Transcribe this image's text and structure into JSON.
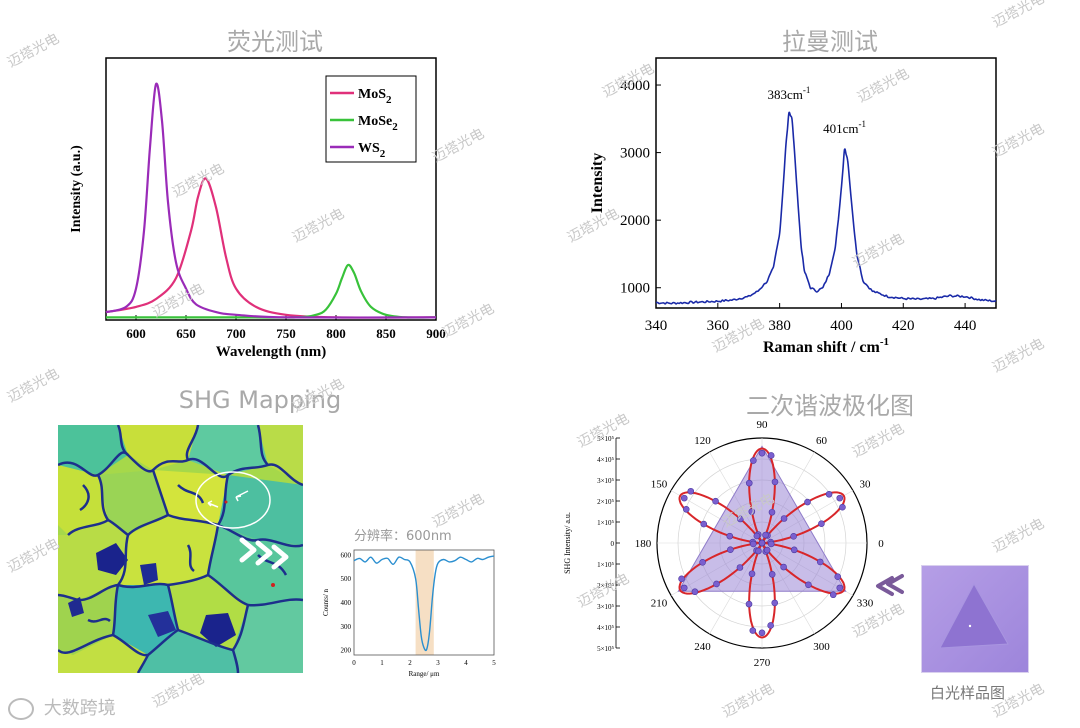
{
  "titles": {
    "pl": "荧光测试",
    "raman": "拉曼测试",
    "shg_map": "SHG Mapping",
    "shg_polar": "二次谐波极化图"
  },
  "watermark": "迈塔光电",
  "logo_text": "大数跨境",
  "white_light_caption": "白光样品图",
  "resolution_label": "分辨率：600nm",
  "chart_data": [
    {
      "type": "line",
      "id": "pl",
      "xlabel": "Wavelength (nm)",
      "ylabel": "Intensity (a.u.)",
      "xlim": [
        570,
        900
      ],
      "xticks": [
        600,
        650,
        700,
        750,
        800,
        850,
        900
      ],
      "ylim": [
        0,
        1.0
      ],
      "legend": "top-right",
      "legend_labels": [
        [
          "MoS",
          "2"
        ],
        [
          "MoSe",
          "2"
        ],
        [
          "WS",
          "2"
        ]
      ],
      "series": [
        {
          "name": "MoS2",
          "color": "#e0307a",
          "x": [
            570,
            600,
            620,
            640,
            655,
            662,
            670,
            680,
            690,
            700,
            720,
            750,
            800,
            900
          ],
          "y": [
            0.03,
            0.05,
            0.08,
            0.16,
            0.34,
            0.47,
            0.54,
            0.43,
            0.24,
            0.12,
            0.05,
            0.02,
            0.01,
            0.01
          ]
        },
        {
          "name": "MoSe2",
          "color": "#38c23a",
          "x": [
            570,
            700,
            760,
            780,
            790,
            800,
            806,
            812,
            818,
            825,
            835,
            850,
            870,
            900
          ],
          "y": [
            0.01,
            0.01,
            0.01,
            0.02,
            0.04,
            0.1,
            0.16,
            0.21,
            0.18,
            0.11,
            0.05,
            0.02,
            0.01,
            0.01
          ]
        },
        {
          "name": "WS2",
          "color": "#9a2bb8",
          "x": [
            570,
            590,
            600,
            608,
            614,
            620,
            626,
            632,
            640,
            650,
            660,
            680,
            700,
            750,
            900
          ],
          "y": [
            0.03,
            0.05,
            0.12,
            0.34,
            0.66,
            0.9,
            0.76,
            0.45,
            0.22,
            0.12,
            0.06,
            0.03,
            0.02,
            0.01,
            0.01
          ]
        }
      ]
    },
    {
      "type": "line",
      "id": "raman",
      "xlabel": "Raman shift / cm",
      "xlabel_sup": "-1",
      "ylabel": "Intensity",
      "xlim": [
        340,
        450
      ],
      "ylim": [
        700,
        4400
      ],
      "xticks": [
        340,
        360,
        380,
        400,
        420,
        440
      ],
      "yticks": [
        1000,
        2000,
        3000,
        4000
      ],
      "annotations": [
        {
          "text": "383cm",
          "sup": "-1",
          "x": 383,
          "y": 3790
        },
        {
          "text": "401cm",
          "sup": "-1",
          "x": 401,
          "y": 3290
        }
      ],
      "series": [
        {
          "name": "Raman",
          "color": "#1a2aa8",
          "x": [
            340,
            345,
            350,
            355,
            360,
            365,
            370,
            373,
            376,
            378,
            380,
            381,
            382,
            383,
            384,
            385,
            386,
            387,
            388,
            390,
            392,
            394,
            396,
            398,
            399,
            400,
            401,
            402,
            403,
            404,
            405,
            407,
            410,
            415,
            420,
            425,
            430,
            435,
            440,
            445,
            450
          ],
          "y": [
            780,
            770,
            780,
            790,
            800,
            820,
            870,
            950,
            1100,
            1300,
            1800,
            2400,
            3100,
            3580,
            3500,
            2900,
            2200,
            1600,
            1250,
            1000,
            950,
            1000,
            1200,
            1600,
            2000,
            2500,
            3050,
            2900,
            2400,
            1900,
            1500,
            1100,
            950,
            870,
            840,
            830,
            840,
            880,
            870,
            820,
            800
          ]
        }
      ]
    },
    {
      "type": "line",
      "id": "shg_profile",
      "xlabel": "Range/ μm",
      "ylabel": "Counts/ n",
      "xlim": [
        0,
        5
      ],
      "ylim": [
        180,
        620
      ],
      "xticks": [
        0,
        1,
        2,
        3,
        4,
        5
      ],
      "yticks": [
        200,
        300,
        400,
        500,
        600
      ],
      "highlight_range": [
        2.2,
        2.85
      ],
      "series": [
        {
          "name": "profile",
          "color": "#2b8fd0",
          "x": [
            0,
            0.2,
            0.4,
            0.6,
            0.8,
            1.0,
            1.2,
            1.4,
            1.6,
            1.8,
            2.0,
            2.2,
            2.3,
            2.4,
            2.5,
            2.6,
            2.7,
            2.8,
            2.9,
            3.0,
            3.2,
            3.4,
            3.6,
            3.8,
            4.0,
            4.2,
            4.4,
            4.6,
            4.8,
            5.0
          ],
          "y": [
            575,
            585,
            570,
            590,
            565,
            580,
            585,
            560,
            590,
            580,
            570,
            500,
            380,
            260,
            210,
            205,
            280,
            420,
            520,
            565,
            580,
            570,
            575,
            590,
            580,
            570,
            585,
            580,
            590,
            595
          ]
        }
      ]
    },
    {
      "type": "scatter",
      "id": "shg_polar",
      "ylabel": "SHG Intensity/ a.u.",
      "r_ticks": [
        "5×10⁵",
        "4×10⁵",
        "3×10⁵",
        "2×10⁵",
        "1×10⁵",
        "0",
        "1×10⁵",
        "2×10⁵",
        "3×10⁵",
        "4×10⁵",
        "5×10⁵"
      ],
      "angle_ticks": [
        0,
        30,
        60,
        90,
        120,
        150,
        180,
        210,
        240,
        270,
        300,
        330
      ],
      "r_max": 5,
      "petal_peak": 4.5,
      "petal_count": 6,
      "petal_offset_deg": 30,
      "marker_step_deg": 6
    }
  ]
}
